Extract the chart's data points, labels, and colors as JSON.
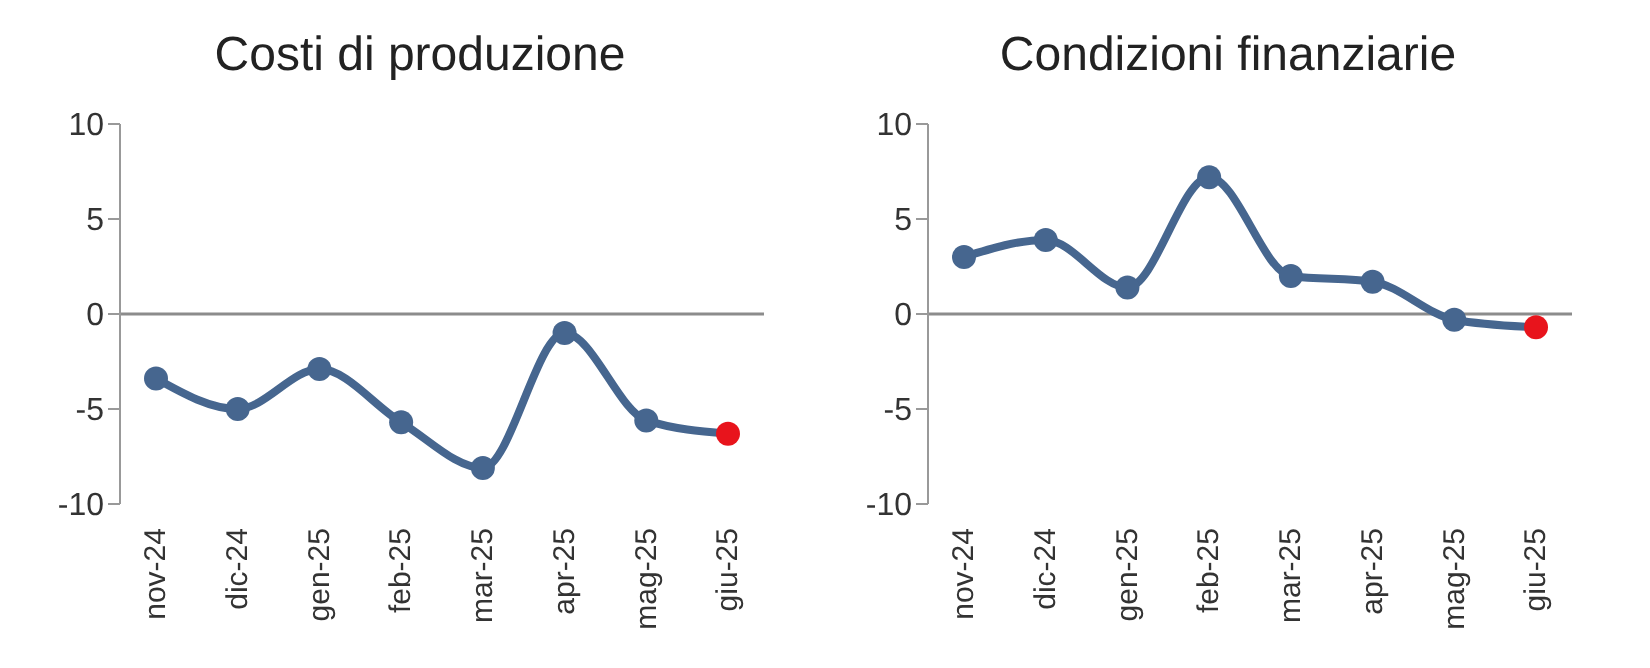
{
  "chart_data": [
    {
      "type": "line",
      "title": "Costi di produzione",
      "categories": [
        "nov-24",
        "dic-24",
        "gen-25",
        "feb-25",
        "mar-25",
        "apr-25",
        "mag-25",
        "giu-25"
      ],
      "series": [
        {
          "color": "#46668f",
          "colors": [
            "#46668f",
            "#46668f",
            "#46668f",
            "#46668f",
            "#46668f",
            "#46668f",
            "#46668f",
            "#e8141c"
          ],
          "values": [
            -3.4,
            -5.0,
            -2.9,
            -5.7,
            -8.1,
            -1.0,
            -5.6,
            -6.3
          ]
        }
      ],
      "ylim": [
        -10,
        10
      ],
      "yticks": [
        -10,
        -5,
        0,
        5,
        10
      ],
      "grid": false,
      "legend": false,
      "marker": "circle",
      "line_style": "solid",
      "ref_lines": [
        {
          "axis": "y",
          "value": 0,
          "color": "#8c8c8c"
        }
      ]
    },
    {
      "type": "line",
      "title": "Condizioni finanziarie",
      "categories": [
        "nov-24",
        "dic-24",
        "gen-25",
        "feb-25",
        "mar-25",
        "apr-25",
        "mag-25",
        "giu-25"
      ],
      "series": [
        {
          "color": "#46668f",
          "colors": [
            "#46668f",
            "#46668f",
            "#46668f",
            "#46668f",
            "#46668f",
            "#46668f",
            "#46668f",
            "#e8141c"
          ],
          "values": [
            3.0,
            3.9,
            1.4,
            7.2,
            2.0,
            1.7,
            -0.3,
            -0.7
          ]
        }
      ],
      "ylim": [
        -10,
        10
      ],
      "yticks": [
        -10,
        -5,
        0,
        5,
        10
      ],
      "grid": false,
      "legend": false,
      "marker": "circle",
      "line_style": "solid",
      "ref_lines": [
        {
          "axis": "y",
          "value": 0,
          "color": "#8c8c8c"
        }
      ]
    }
  ]
}
